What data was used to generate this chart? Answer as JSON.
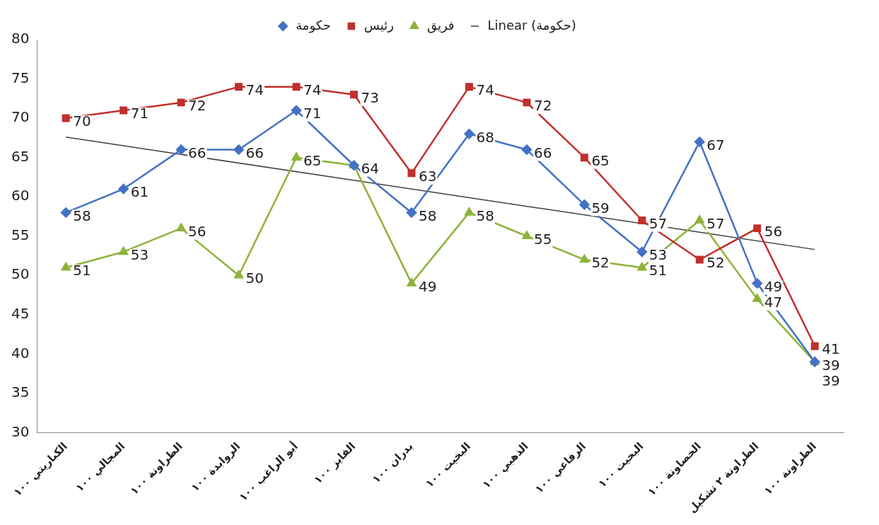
{
  "chart_data": {
    "type": "line",
    "categories": [
      "الكباريتي ١٠٠",
      "المجالي ١٠٠",
      "الطراونة ١٠٠",
      "الروابدة ١٠٠",
      "أبو الراغب ١٠٠",
      "الفايز ١٠٠",
      "بدران ١٠٠",
      "البخيت ١٠٠",
      "الذهبي ١٠٠",
      "الرفاعي ١٠٠",
      "البخيت ١٠٠",
      "الخصاونة ١٠٠",
      "الطراونة ٢ تشكيل",
      "الطراونة ١٠٠"
    ],
    "series": [
      {
        "name": "حكومة",
        "color": "#4472c4",
        "marker": "diamond",
        "values": [
          58,
          61,
          66,
          66,
          71,
          64,
          58,
          68,
          66,
          59,
          53,
          67,
          49,
          39
        ],
        "value_labels": [
          "58",
          "61",
          "66",
          "66",
          "71",
          null,
          "58",
          "68",
          "66",
          "59",
          "53",
          "67",
          "49",
          "39"
        ]
      },
      {
        "name": "رئيس",
        "color": "#c0302c",
        "marker": "square",
        "values": [
          70,
          71,
          72,
          74,
          74,
          73,
          63,
          74,
          72,
          65,
          57,
          52,
          56,
          41
        ],
        "value_labels": [
          "70",
          "71",
          "72",
          "74",
          "74",
          "73",
          "63",
          "74",
          "72",
          "65",
          "57",
          "52",
          "56",
          "41"
        ]
      },
      {
        "name": "فريق",
        "color": "#8db33a",
        "marker": "triangle",
        "values": [
          51,
          53,
          56,
          50,
          65,
          64,
          49,
          58,
          55,
          52,
          51,
          57,
          47,
          39
        ],
        "value_labels": [
          "51",
          "53",
          "56",
          "50",
          "65",
          "64",
          "49",
          "58",
          "55",
          "52",
          "51",
          "57",
          "47",
          "39"
        ]
      },
      {
        "name": "Linear (حكومة)",
        "type": "line",
        "color": "#404040",
        "marker": "none",
        "values": [
          67.6,
          null,
          null,
          null,
          null,
          null,
          null,
          null,
          null,
          null,
          null,
          null,
          null,
          53.3
        ]
      }
    ],
    "ylim": [
      30,
      80
    ],
    "yticks": [
      30,
      35,
      40,
      45,
      50,
      55,
      60,
      65,
      70,
      75,
      80
    ],
    "grid": false,
    "legend": "top"
  }
}
